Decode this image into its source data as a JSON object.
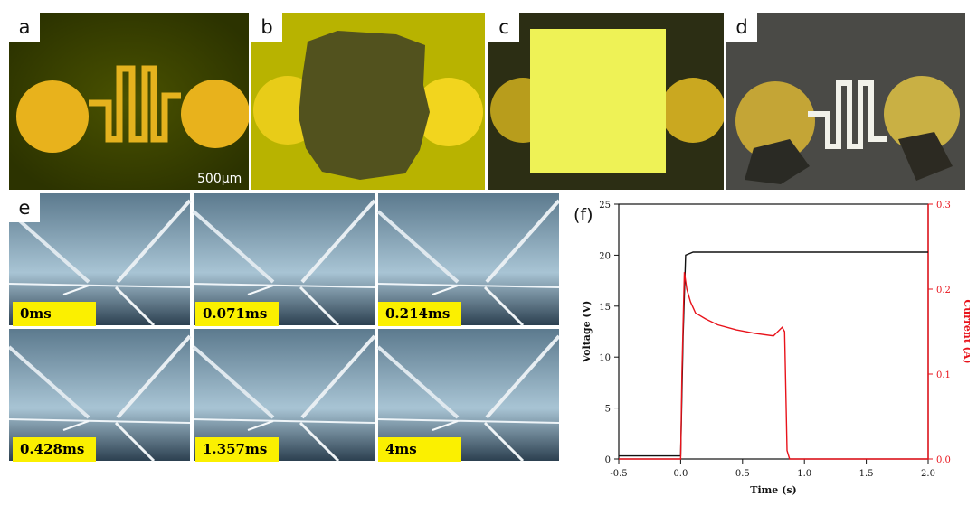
{
  "panels": {
    "a": {
      "label": "a",
      "scale_bar": "500µm"
    },
    "b": {
      "label": "b"
    },
    "c": {
      "label": "c"
    },
    "d": {
      "label": "d"
    },
    "e": {
      "label": "e",
      "frames": [
        "0ms",
        "0.071ms",
        "0.214ms",
        "0.428ms",
        "1.357ms",
        "4ms"
      ]
    }
  },
  "chart_data": {
    "type": "line",
    "panel_label": "(f)",
    "xlabel": "Time (s)",
    "ylabel_left": "Voltage (V)",
    "ylabel_right": "Current (A)",
    "xlim": [
      -0.5,
      2.0
    ],
    "ylim_left": [
      0,
      25
    ],
    "ylim_right": [
      0,
      0.3
    ],
    "xticks": [
      "-0.5",
      "0.0",
      "0.5",
      "1.0",
      "1.5",
      "2.0"
    ],
    "yticks_left": [
      "0",
      "5",
      "10",
      "15",
      "20",
      "25"
    ],
    "yticks_right": [
      "0.0",
      "0.1",
      "0.2",
      "0.3"
    ],
    "series": [
      {
        "axis": "left",
        "color": "#111111",
        "x": [
          -0.5,
          -0.1,
          0.0,
          0.02,
          0.04,
          0.1,
          0.5,
          1.0,
          1.5,
          2.0
        ],
        "y": [
          0.3,
          0.3,
          0.3,
          12,
          20.0,
          20.3,
          20.3,
          20.3,
          20.3,
          20.3
        ]
      },
      {
        "axis": "right",
        "color": "#e8131b",
        "x": [
          -0.5,
          -0.1,
          0.0,
          0.01,
          0.03,
          0.05,
          0.08,
          0.12,
          0.2,
          0.3,
          0.45,
          0.6,
          0.75,
          0.82,
          0.84,
          0.86,
          0.88,
          1.0,
          1.5,
          2.0
        ],
        "y": [
          0.0,
          0.0,
          0.0,
          0.1,
          0.22,
          0.2,
          0.185,
          0.172,
          0.165,
          0.158,
          0.152,
          0.148,
          0.145,
          0.155,
          0.15,
          0.01,
          0.0,
          0.0,
          0.0,
          0.0
        ]
      }
    ],
    "colors": {
      "left_axis": "#111111",
      "right_axis": "#e8131b"
    }
  }
}
